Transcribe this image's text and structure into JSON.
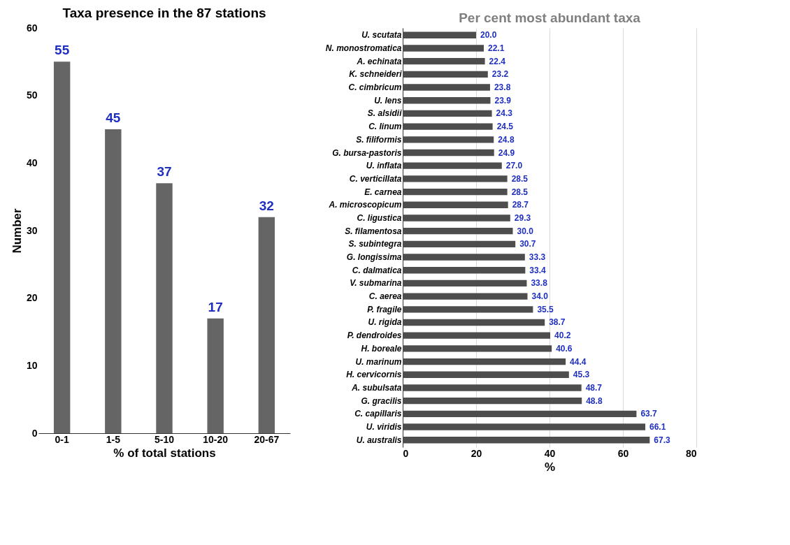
{
  "chart_data": [
    {
      "type": "bar",
      "title": "Taxa presence in the 87 stations",
      "xlabel": "% of total stations",
      "ylabel": "Number",
      "categories": [
        "0-1",
        "1-5",
        "5-10",
        "10-20",
        "20-67"
      ],
      "values": [
        55,
        45,
        37,
        17,
        32
      ],
      "color": "#656565",
      "ylim": [
        0,
        60
      ],
      "yticks": [
        0,
        10,
        20,
        30,
        40,
        50,
        60
      ],
      "grid": false,
      "data_labels": true
    },
    {
      "type": "bar",
      "orientation": "horizontal",
      "title": "Per cent most abundant taxa",
      "xlabel": "%",
      "categories": [
        "U. scutata",
        "N. monostromatica",
        "A. echinata",
        "K. schneideri",
        "C. cimbricum",
        "U. lens",
        "S. alsidii",
        "C. linum",
        "S. filiformis",
        "G. bursa-pastoris",
        "U. inflata",
        "C. verticillata",
        "E. carnea",
        "A. microscopicum",
        "C. ligustica",
        "S. filamentosa",
        "S. subintegra",
        "G. longissima",
        "C. dalmatica",
        "V. submarina",
        "C. aerea",
        "P. fragile",
        "U. rigida",
        "P. dendroides",
        "H. boreale",
        "U. marinum",
        "H. cervicornis",
        "A. subulsata",
        "G. gracilis",
        "C. capillaris",
        "U. viridis",
        "U. australis"
      ],
      "values": [
        20.0,
        22.1,
        22.4,
        23.2,
        23.8,
        23.9,
        24.3,
        24.5,
        24.8,
        24.9,
        27.0,
        28.5,
        28.5,
        28.7,
        29.3,
        30.0,
        30.7,
        33.3,
        33.4,
        33.8,
        34.0,
        35.5,
        38.7,
        40.2,
        40.6,
        44.4,
        45.3,
        48.7,
        48.8,
        63.7,
        66.1,
        67.3
      ],
      "value_labels": [
        "20.0",
        "22.1",
        "22.4",
        "23.2",
        "23.8",
        "23.9",
        "24.3",
        "24.5",
        "24.8",
        "24.9",
        "27.0",
        "28.5",
        "28.5",
        "28.7",
        "29.3",
        "30.0",
        "30.7",
        "33.3",
        "33.4",
        "33.8",
        "34.0",
        "35.5",
        "38.7",
        "40.2",
        "40.6",
        "44.4",
        "45.3",
        "48.7",
        "48.8",
        "63.7",
        "66.1",
        "67.3"
      ],
      "color": "#4d4d4d",
      "xlim": [
        0,
        80
      ],
      "xticks": [
        0,
        20,
        40,
        60,
        80
      ],
      "grid": "x"
    }
  ]
}
